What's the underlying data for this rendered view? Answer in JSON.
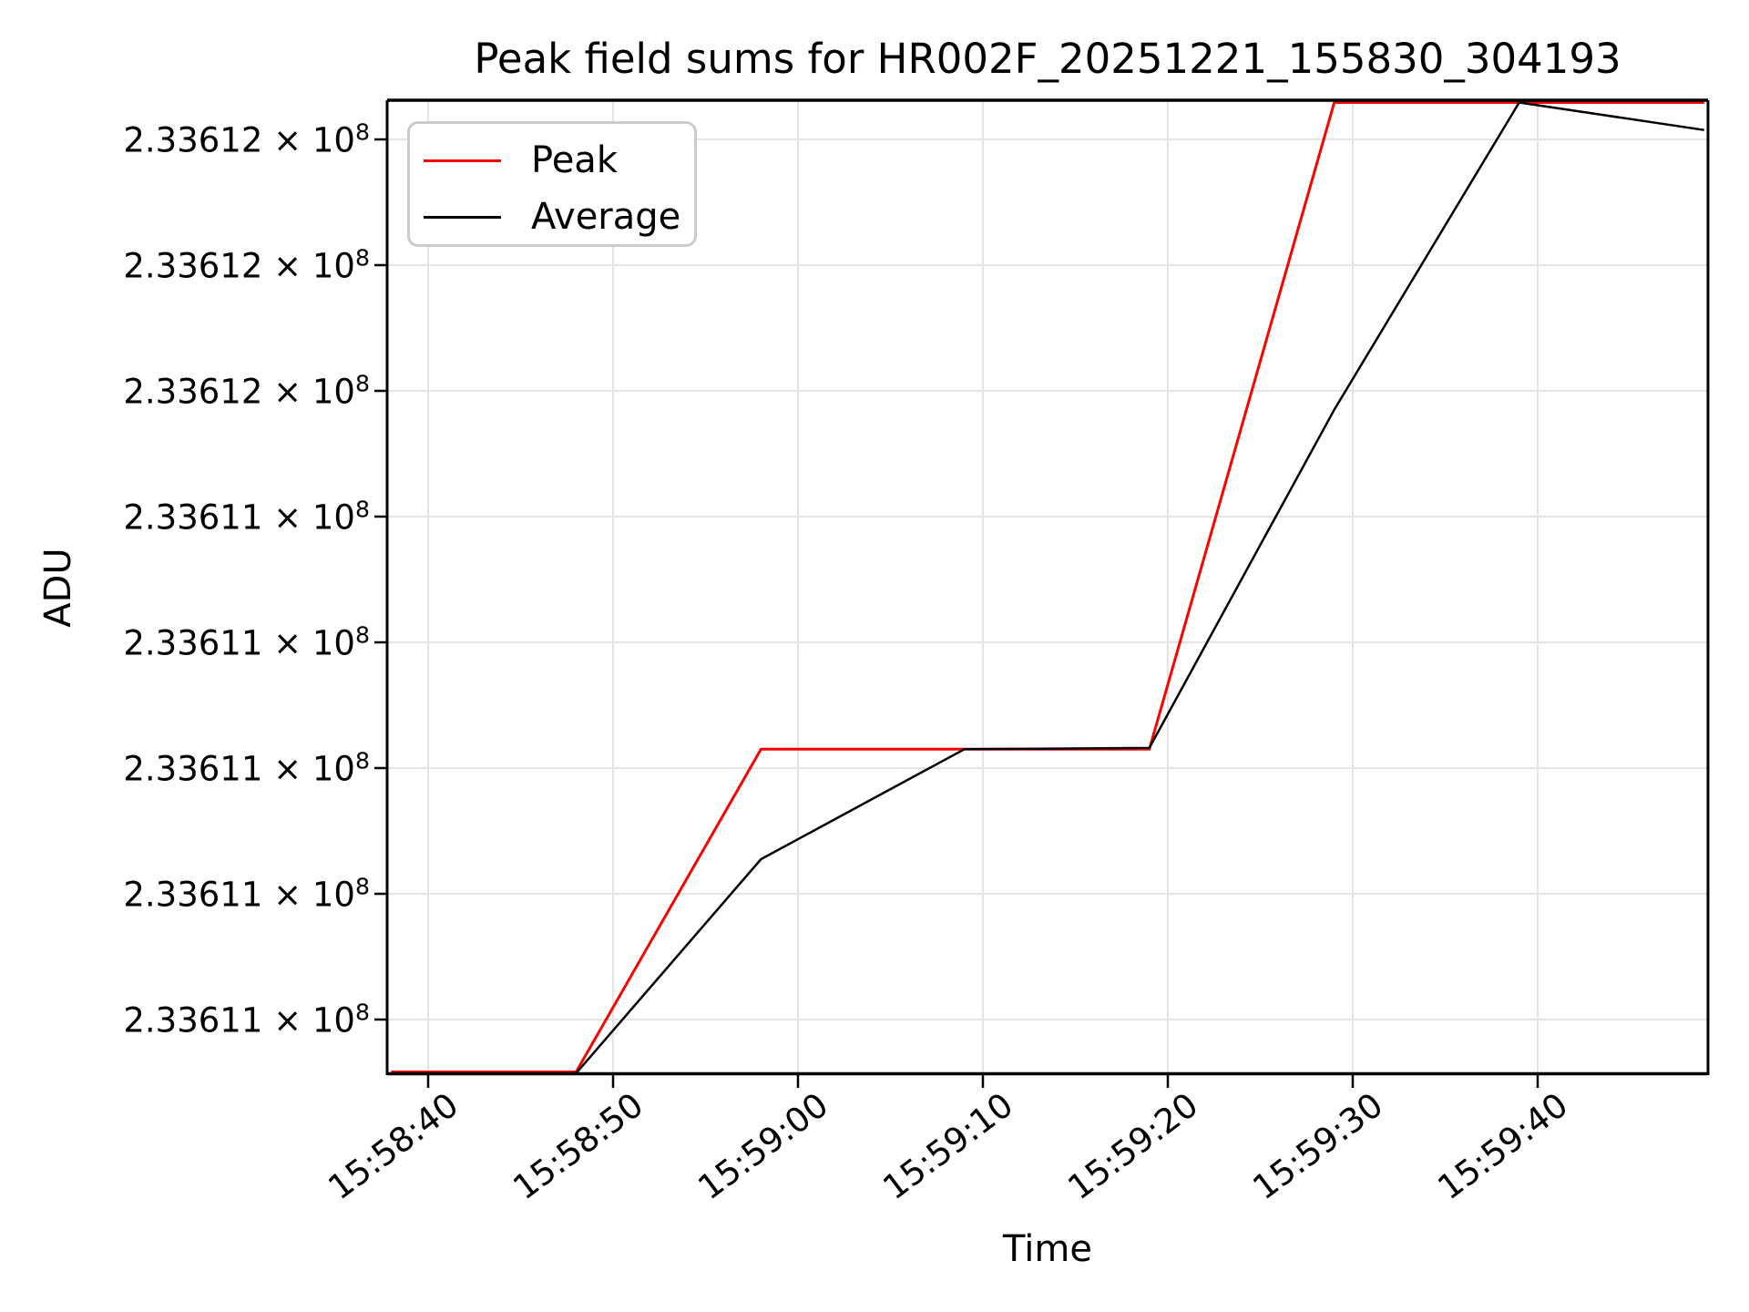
{
  "title": "Peak field sums for HR002F_20251221_155830_304193",
  "axes": {
    "x_label": "Time",
    "y_label": "ADU",
    "x_tick_labels": [
      "15:58:40",
      "15:58:50",
      "15:59:00",
      "15:59:10",
      "15:59:20",
      "15:59:30",
      "15:59:40"
    ],
    "y_tick_mantissas": [
      "2.33612",
      "2.33612",
      "2.33612",
      "2.33611",
      "2.33611",
      "2.33611",
      "2.33611",
      "2.33611"
    ],
    "y_tick_times_sign": "×",
    "y_tick_power_base": "10",
    "y_tick_exponent": "8"
  },
  "legend": {
    "items": [
      {
        "label": "Peak",
        "color": "#ff0000"
      },
      {
        "label": "Average",
        "color": "#000000"
      }
    ]
  },
  "chart_data": {
    "type": "line",
    "title": "Peak field sums for HR002F_20251221_155830_304193",
    "xlabel": "Time",
    "ylabel": "ADU",
    "x": [
      "15:58:38",
      "15:58:48",
      "15:58:58",
      "15:59:09",
      "15:59:19",
      "15:59:29",
      "15:59:39",
      "15:59:49"
    ],
    "series": [
      {
        "name": "Peak",
        "color": "#ff0000",
        "values": [
          233610500,
          233610500,
          233611030,
          233611030,
          233611030,
          233612065,
          233612120,
          233612120
        ]
      },
      {
        "name": "Average",
        "color": "#000000",
        "values": [
          233610500,
          233610500,
          233610855,
          233611030,
          233611032,
          233611570,
          233612062,
          233612015
        ]
      }
    ],
    "y_tick_values": [
      233610600,
      233610800,
      233611000,
      233611200,
      233611400,
      233611600,
      233611800,
      233612000
    ],
    "x_tick_labels": [
      "15:58:40",
      "15:58:50",
      "15:59:00",
      "15:59:10",
      "15:59:20",
      "15:59:30",
      "15:59:40"
    ],
    "ylim": [
      233610515,
      233612062
    ],
    "xlim": [
      "15:58:37.8",
      "15:59:49.3"
    ],
    "grid": true,
    "legend_position": "upper left",
    "note_units": "ADU"
  }
}
